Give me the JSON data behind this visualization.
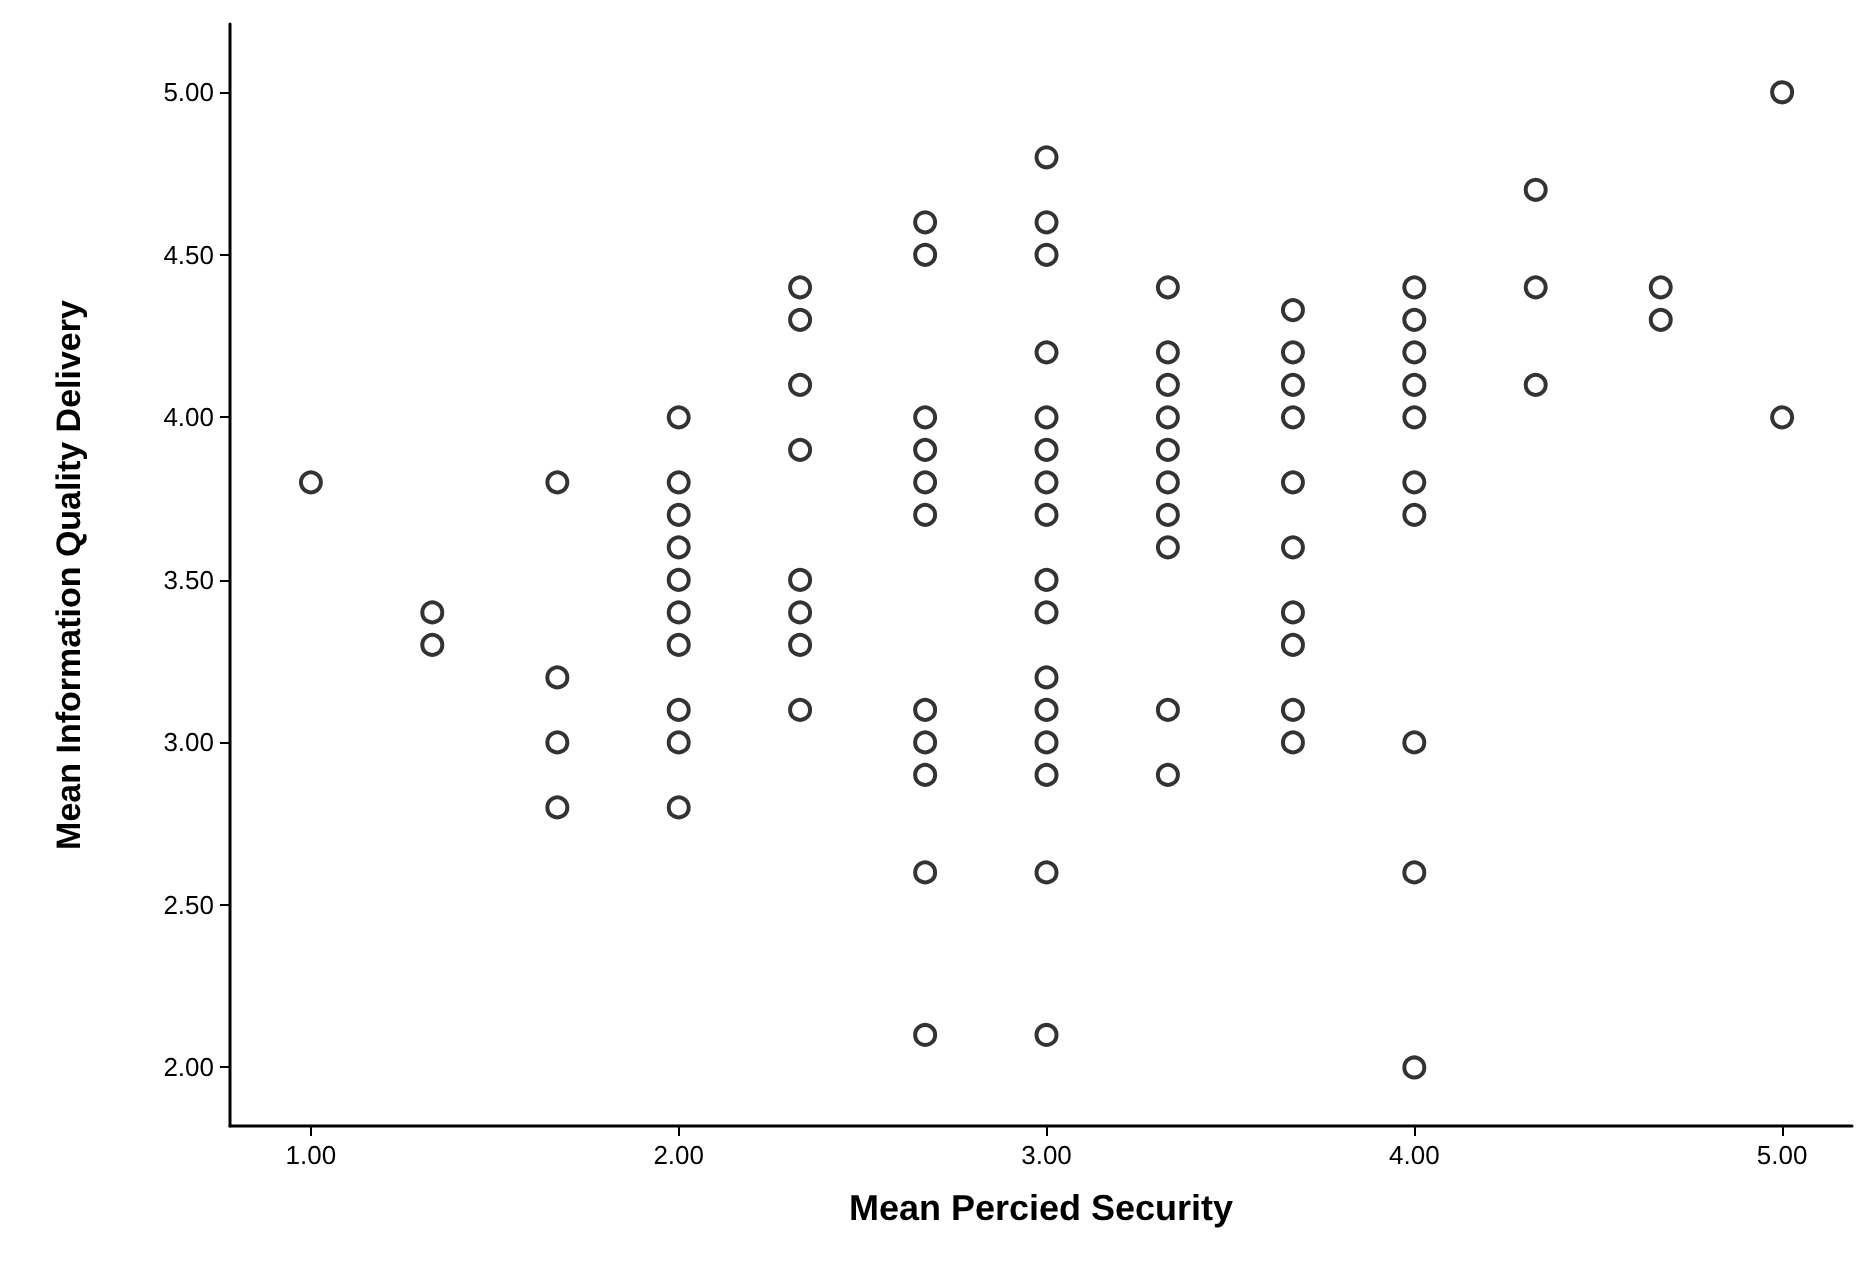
{
  "chart_data": {
    "type": "scatter",
    "xlabel": "Mean Percied Security",
    "ylabel": "Mean Information Quality Delivery",
    "x": [
      1,
      1.33,
      1.33,
      1.67,
      1.67,
      1.67,
      1.67,
      2,
      2,
      2,
      2,
      2,
      2,
      2,
      2,
      2,
      2,
      2.33,
      2.33,
      2.33,
      2.33,
      2.33,
      2.33,
      2.33,
      2.33,
      2.67,
      2.67,
      2.67,
      2.67,
      2.67,
      2.67,
      2.67,
      2.67,
      2.67,
      2.67,
      2.67,
      3,
      3,
      3,
      3,
      3,
      3,
      3,
      3,
      3,
      3,
      3,
      3,
      3,
      3,
      3,
      3,
      3.33,
      3.33,
      3.33,
      3.33,
      3.33,
      3.33,
      3.33,
      3.33,
      3.33,
      3.33,
      3.67,
      3.67,
      3.67,
      3.67,
      3.67,
      3.67,
      3.67,
      3.67,
      3.67,
      3.67,
      4,
      4,
      4,
      4,
      4,
      4,
      4,
      4,
      4,
      4,
      4.33,
      4.33,
      4.33,
      4.67,
      4.67,
      5,
      5
    ],
    "series": [
      {
        "color": "#000000",
        "values": [
          3.8,
          3.4,
          3.3,
          3.8,
          3.2,
          3.0,
          2.8,
          4.0,
          3.8,
          3.7,
          3.6,
          3.5,
          3.4,
          3.3,
          3.1,
          3.0,
          2.8,
          4.4,
          4.3,
          4.1,
          3.9,
          3.5,
          3.4,
          3.3,
          3.1,
          4.6,
          4.5,
          4.0,
          3.9,
          3.8,
          3.7,
          3.1,
          3.0,
          2.9,
          2.6,
          2.1,
          4.8,
          4.6,
          4.5,
          4.2,
          4.0,
          3.9,
          3.8,
          3.7,
          3.5,
          3.4,
          3.2,
          3.1,
          3.0,
          2.9,
          2.6,
          2.1,
          4.4,
          4.2,
          4.1,
          4.0,
          3.9,
          3.8,
          3.7,
          3.6,
          3.1,
          2.9,
          4.33,
          4.2,
          4.1,
          4.0,
          3.8,
          3.6,
          3.4,
          3.3,
          3.1,
          3.0,
          4.4,
          4.3,
          4.2,
          4.1,
          4.0,
          3.8,
          3.7,
          3.0,
          2.6,
          2.0,
          4.7,
          4.4,
          4.1,
          4.4,
          4.3,
          5.0,
          4.0
        ]
      }
    ],
    "xlim": [
      0.78,
      5.19
    ],
    "ylim": [
      1.82,
      5.21
    ],
    "xticks": [
      {
        "value": 1,
        "label": "1.00"
      },
      {
        "value": 2,
        "label": "2.00"
      },
      {
        "value": 3,
        "label": "3.00"
      },
      {
        "value": 4,
        "label": "4.00"
      },
      {
        "value": 5,
        "label": "5.00"
      }
    ],
    "yticks": [
      {
        "value": 2,
        "label": "2.00"
      },
      {
        "value": 2.5,
        "label": "2.50"
      },
      {
        "value": 3,
        "label": "3.00"
      },
      {
        "value": 3.5,
        "label": "3.50"
      },
      {
        "value": 4,
        "label": "4.00"
      },
      {
        "value": 4.5,
        "label": "4.50"
      },
      {
        "value": 5,
        "label": "5.00"
      }
    ],
    "marker": "circle",
    "grid": false
  }
}
